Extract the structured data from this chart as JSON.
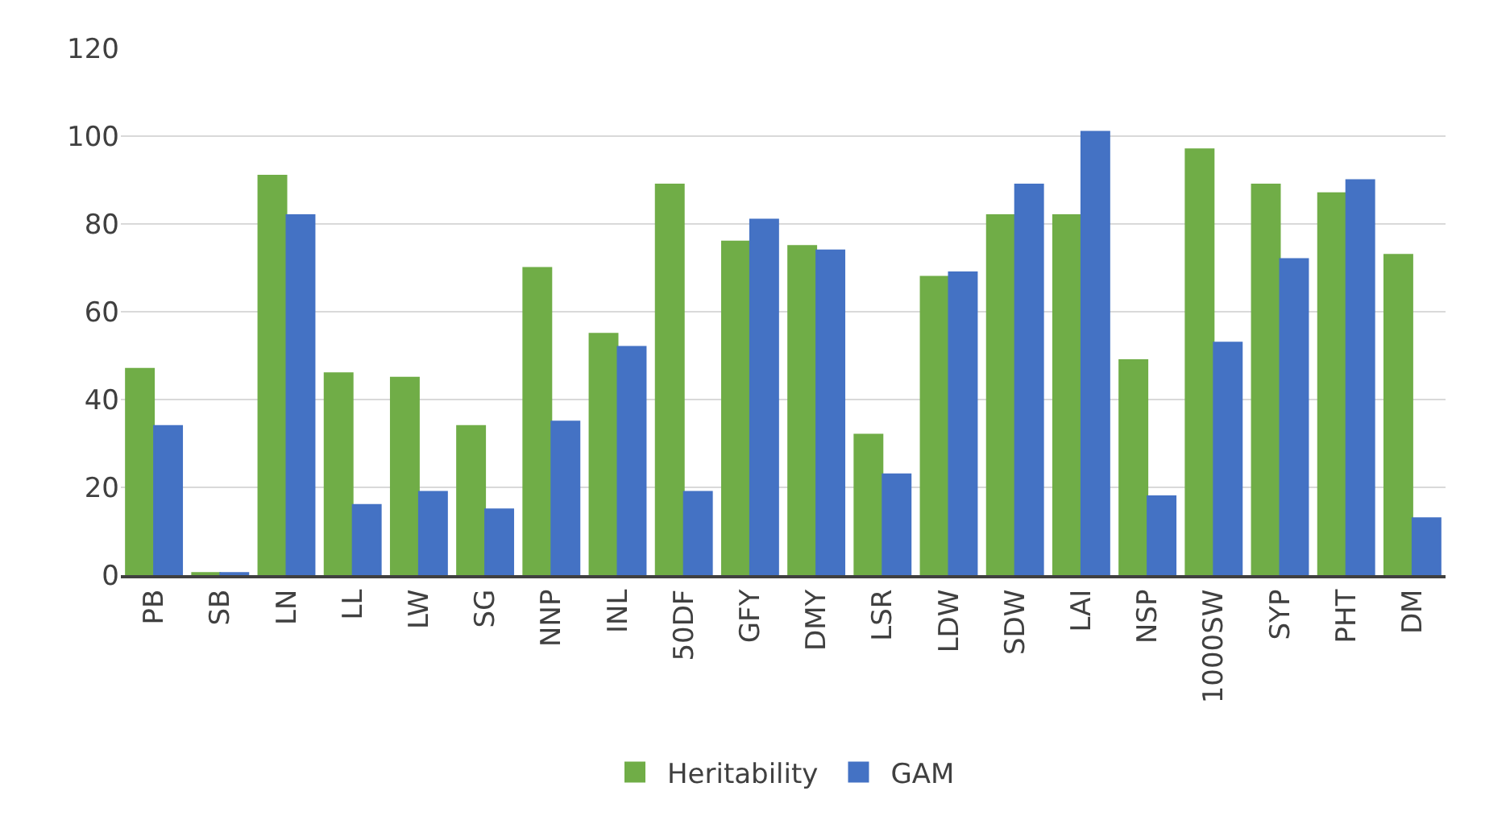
{
  "chart_data": {
    "type": "bar",
    "categories": [
      "PB",
      "SB",
      "LN",
      "LL",
      "LW",
      "SG",
      "NNP",
      "INL",
      "50DF",
      "GFY",
      "DMY",
      "LSR",
      "LDW",
      "SDW",
      "LAI",
      "NSP",
      "1000SW",
      "SYP",
      "PHT",
      "DM"
    ],
    "series": [
      {
        "name": "Heritability",
        "color": "#70ad47",
        "values": [
          47,
          0.5,
          91,
          46,
          45,
          34,
          70,
          55,
          89,
          76,
          75,
          32,
          68,
          82,
          82,
          49,
          97,
          89,
          87,
          73
        ]
      },
      {
        "name": "GAM",
        "color": "#4472c4",
        "values": [
          34,
          0.5,
          82,
          16,
          19,
          15,
          35,
          52,
          19,
          81,
          74,
          23,
          69,
          89,
          101,
          18,
          53,
          72,
          90,
          13
        ]
      }
    ],
    "ylim": [
      0,
      120
    ],
    "yticks": [
      0,
      20,
      40,
      60,
      80,
      100,
      120
    ],
    "grid": "y",
    "legend": "bottom"
  }
}
